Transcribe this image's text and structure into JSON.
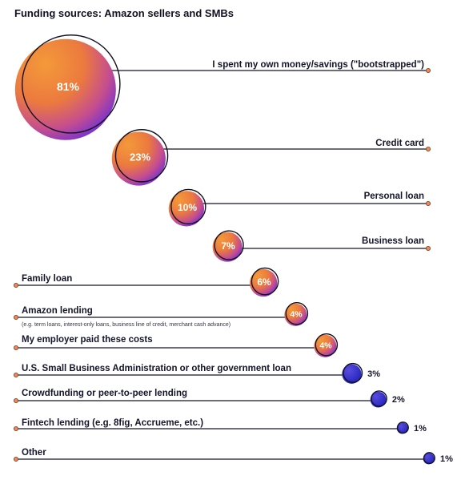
{
  "chart_data": {
    "type": "bubble",
    "title": "Funding sources: Amazon sellers and SMBs",
    "unit": "%",
    "categories": [
      "I spent my own money/savings (\"bootstrapped\")",
      "Credit card",
      "Personal loan",
      "Business loan",
      "Family loan",
      "Amazon lending",
      "My employer paid these costs",
      "U.S. Small Business Administration or other government loan",
      "Crowdfunding or peer-to-peer lending",
      "Fintech lending (e.g. 8fig, Accrueme, etc.)",
      "Other"
    ],
    "values": [
      81,
      23,
      10,
      7,
      6,
      4,
      4,
      3,
      2,
      1,
      1
    ],
    "notes": {
      "Amazon lending": "(e.g. term loans, interest-only loans, business line of credit, merchant cash advance)"
    }
  },
  "colors": {
    "bubble_orange": "#f28a2e",
    "bubble_purple": "#6d2fd6",
    "small_bubble_blue": "#2a2ad0",
    "line": "#14142a",
    "endpoint": "#e88a5a"
  }
}
